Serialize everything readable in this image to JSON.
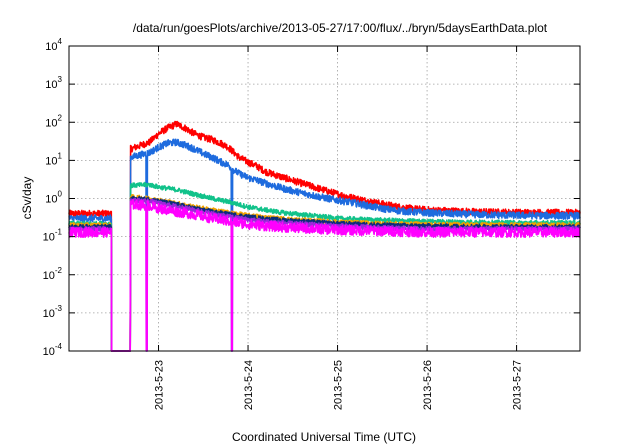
{
  "chart_data": {
    "type": "line",
    "title": "/data/run/goesPlots/archive/2013-05-27/17:00/flux/../bryn/5daysEarthData.plot",
    "xlabel": "Coordinated Universal Time (UTC)",
    "ylabel": "cSv/day",
    "y_scale": "log",
    "ylim_exponents": [
      -4,
      4
    ],
    "ytick_base": "10",
    "ytick_exponents": [
      "-4",
      "-3",
      "-2",
      "-1",
      "0",
      "1",
      "2",
      "3",
      "4"
    ],
    "xlim": [
      "2013-05-22 00:00",
      "2013-05-27 17:00"
    ],
    "xticks": [
      {
        "label": "2013-5-23",
        "day": 1
      },
      {
        "label": "2013-5-24",
        "day": 2
      },
      {
        "label": "2013-5-25",
        "day": 3
      },
      {
        "label": "2013-5-26",
        "day": 4
      },
      {
        "label": "2013-5-27",
        "day": 5
      }
    ],
    "grid": true,
    "series": [
      {
        "color": "#ff0000",
        "points": [
          [
            0.0,
            0.4
          ],
          [
            0.45,
            0.4
          ],
          [
            0.5,
            0.0001
          ],
          [
            0.68,
            0.0001
          ],
          [
            0.69,
            20
          ],
          [
            0.9,
            30
          ],
          [
            1.0,
            50
          ],
          [
            1.1,
            70
          ],
          [
            1.2,
            90
          ],
          [
            1.3,
            70
          ],
          [
            1.4,
            50
          ],
          [
            1.5,
            40
          ],
          [
            1.6,
            35
          ],
          [
            1.7,
            28
          ],
          [
            1.78,
            22
          ],
          [
            1.82,
            18
          ],
          [
            1.9,
            12
          ],
          [
            2.0,
            9
          ],
          [
            2.1,
            7
          ],
          [
            2.2,
            5
          ],
          [
            2.4,
            3.5
          ],
          [
            2.6,
            2.5
          ],
          [
            2.8,
            1.8
          ],
          [
            3.0,
            1.3
          ],
          [
            3.2,
            1.0
          ],
          [
            3.4,
            0.8
          ],
          [
            3.6,
            0.65
          ],
          [
            3.8,
            0.55
          ],
          [
            4.0,
            0.5
          ],
          [
            4.5,
            0.45
          ],
          [
            5.0,
            0.43
          ],
          [
            5.7,
            0.42
          ]
        ]
      },
      {
        "color": "#1e6bde",
        "points": [
          [
            0.0,
            0.3
          ],
          [
            0.45,
            0.3
          ],
          [
            0.5,
            0.0001
          ],
          [
            0.68,
            0.0001
          ],
          [
            0.69,
            12
          ],
          [
            0.9,
            16
          ],
          [
            1.0,
            22
          ],
          [
            1.1,
            28
          ],
          [
            1.2,
            30
          ],
          [
            1.3,
            25
          ],
          [
            1.4,
            20
          ],
          [
            1.5,
            15
          ],
          [
            1.6,
            12
          ],
          [
            1.7,
            9
          ],
          [
            1.78,
            7.5
          ],
          [
            1.82,
            6
          ],
          [
            1.9,
            4.5
          ],
          [
            2.0,
            3.5
          ],
          [
            2.1,
            3
          ],
          [
            2.2,
            2.5
          ],
          [
            2.4,
            1.8
          ],
          [
            2.6,
            1.4
          ],
          [
            2.8,
            1.1
          ],
          [
            3.0,
            0.9
          ],
          [
            3.2,
            0.75
          ],
          [
            3.4,
            0.6
          ],
          [
            3.6,
            0.5
          ],
          [
            3.8,
            0.45
          ],
          [
            4.0,
            0.42
          ],
          [
            4.5,
            0.38
          ],
          [
            5.0,
            0.36
          ],
          [
            5.7,
            0.35
          ]
        ]
      },
      {
        "color": "#11c28a",
        "points": [
          [
            0.0,
            0.22
          ],
          [
            0.45,
            0.22
          ],
          [
            0.5,
            0.0001
          ],
          [
            0.68,
            0.0001
          ],
          [
            0.69,
            2.2
          ],
          [
            0.9,
            2.3
          ],
          [
            1.0,
            2.0
          ],
          [
            1.2,
            1.7
          ],
          [
            1.4,
            1.3
          ],
          [
            1.6,
            1.0
          ],
          [
            1.8,
            0.8
          ],
          [
            2.0,
            0.6
          ],
          [
            2.2,
            0.5
          ],
          [
            2.4,
            0.42
          ],
          [
            2.6,
            0.38
          ],
          [
            2.8,
            0.34
          ],
          [
            3.0,
            0.3
          ],
          [
            3.5,
            0.27
          ],
          [
            4.0,
            0.25
          ],
          [
            4.5,
            0.24
          ],
          [
            5.0,
            0.23
          ],
          [
            5.7,
            0.23
          ]
        ]
      },
      {
        "color": "#f2a300",
        "points": [
          [
            0.0,
            0.2
          ],
          [
            0.45,
            0.2
          ],
          [
            0.5,
            0.0001
          ],
          [
            0.68,
            0.0001
          ],
          [
            0.69,
            1.1
          ],
          [
            0.9,
            1.0
          ],
          [
            1.0,
            0.9
          ],
          [
            1.2,
            0.75
          ],
          [
            1.4,
            0.6
          ],
          [
            1.6,
            0.5
          ],
          [
            1.8,
            0.42
          ],
          [
            2.0,
            0.36
          ],
          [
            2.2,
            0.32
          ],
          [
            2.5,
            0.28
          ],
          [
            3.0,
            0.24
          ],
          [
            3.5,
            0.22
          ],
          [
            4.0,
            0.21
          ],
          [
            5.0,
            0.2
          ],
          [
            5.7,
            0.2
          ]
        ]
      },
      {
        "color": "#0b2d7a",
        "points": [
          [
            0.0,
            0.18
          ],
          [
            0.45,
            0.18
          ],
          [
            0.5,
            0.0001
          ],
          [
            0.68,
            0.0001
          ],
          [
            0.69,
            1.0
          ],
          [
            0.9,
            0.95
          ],
          [
            1.0,
            0.85
          ],
          [
            1.2,
            0.7
          ],
          [
            1.4,
            0.55
          ],
          [
            1.6,
            0.45
          ],
          [
            1.8,
            0.38
          ],
          [
            2.0,
            0.33
          ],
          [
            2.2,
            0.29
          ],
          [
            2.5,
            0.26
          ],
          [
            3.0,
            0.22
          ],
          [
            3.5,
            0.2
          ],
          [
            4.0,
            0.19
          ],
          [
            5.0,
            0.18
          ],
          [
            5.7,
            0.18
          ]
        ]
      },
      {
        "color": "#9b2ad9",
        "points": [
          [
            0.0,
            0.16
          ],
          [
            0.45,
            0.16
          ],
          [
            0.5,
            0.0001
          ],
          [
            0.68,
            0.0001
          ],
          [
            0.69,
            0.9
          ],
          [
            0.9,
            0.85
          ],
          [
            1.0,
            0.75
          ],
          [
            1.2,
            0.62
          ],
          [
            1.4,
            0.5
          ],
          [
            1.6,
            0.4
          ],
          [
            1.8,
            0.33
          ],
          [
            2.0,
            0.28
          ],
          [
            2.2,
            0.25
          ],
          [
            2.5,
            0.22
          ],
          [
            3.0,
            0.19
          ],
          [
            3.5,
            0.17
          ],
          [
            4.0,
            0.16
          ],
          [
            5.0,
            0.16
          ],
          [
            5.7,
            0.16
          ]
        ]
      },
      {
        "color": "#ff00ff",
        "points": [
          [
            0.0,
            0.13
          ],
          [
            0.45,
            0.13
          ],
          [
            0.5,
            0.0001
          ],
          [
            0.68,
            0.0001
          ],
          [
            0.69,
            0.7
          ],
          [
            0.9,
            0.65
          ],
          [
            1.0,
            0.55
          ],
          [
            1.2,
            0.45
          ],
          [
            1.4,
            0.38
          ],
          [
            1.6,
            0.3
          ],
          [
            1.8,
            0.25
          ],
          [
            2.0,
            0.21
          ],
          [
            2.2,
            0.19
          ],
          [
            2.5,
            0.17
          ],
          [
            3.0,
            0.15
          ],
          [
            3.5,
            0.14
          ],
          [
            4.0,
            0.13
          ],
          [
            5.0,
            0.13
          ],
          [
            5.7,
            0.13
          ]
        ]
      }
    ],
    "dropouts": [
      {
        "day": 0.87,
        "colors": [
          "#1e6bde",
          "#ff00ff"
        ]
      },
      {
        "day": 1.82,
        "colors": [
          "#1e6bde",
          "#ff00ff"
        ]
      }
    ]
  }
}
